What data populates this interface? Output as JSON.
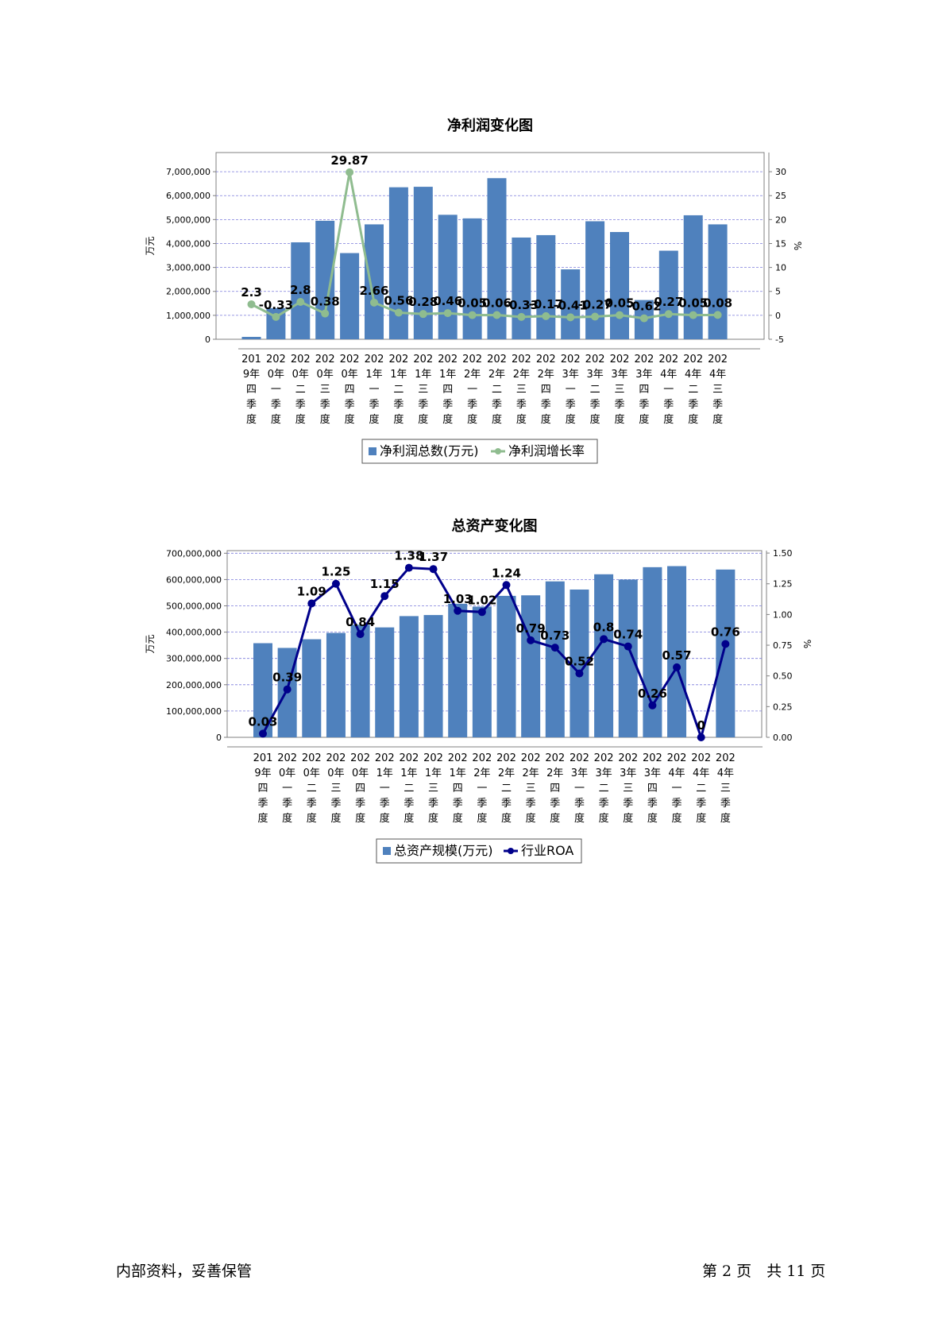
{
  "footer": {
    "left": "内部资料，妥善保管",
    "right": "第 2 页　共 11 页"
  },
  "chart_data": [
    {
      "type": "bar",
      "title": "净利润变化图",
      "ylabel": "万元",
      "y2label": "%",
      "ylim": [
        0,
        7800000
      ],
      "y2lim": [
        -5,
        34
      ],
      "yticks": [
        "0",
        "1,000,000",
        "2,000,000",
        "3,000,000",
        "4,000,000",
        "5,000,000",
        "6,000,000",
        "7,000,000"
      ],
      "y2ticks": [
        "-5",
        "0",
        "5",
        "10",
        "15",
        "20",
        "25",
        "30"
      ],
      "categories": [
        "2019年四季度",
        "2020年一季度",
        "2020年二季度",
        "2020年三季度",
        "2020年四季度",
        "2021年一季度",
        "2021年二季度",
        "2021年三季度",
        "2021年四季度",
        "2022年一季度",
        "2022年二季度",
        "2022年三季度",
        "2022年四季度",
        "2023年一季度",
        "2023年二季度",
        "2023年三季度",
        "2023年四季度",
        "2024年一季度",
        "2024年二季度",
        "2024年三季度"
      ],
      "series": [
        {
          "name": "净利润总数(万元)",
          "kind": "bar",
          "color": "#4f81bd",
          "values": [
            100000,
            1300000,
            4050000,
            4950000,
            3600000,
            4800000,
            6350000,
            6370000,
            5200000,
            5050000,
            6730000,
            4250000,
            4350000,
            2920000,
            4930000,
            4480000,
            1640000,
            3700000,
            5180000,
            4800000
          ]
        },
        {
          "name": "净利润增长率",
          "kind": "line",
          "color": "#8fbc8f",
          "values": [
            2.3,
            -0.33,
            2.8,
            0.38,
            29.87,
            2.66,
            0.56,
            0.28,
            0.46,
            0.05,
            0.06,
            -0.33,
            -0.17,
            -0.41,
            -0.27,
            0.05,
            -0.62,
            0.27,
            0.05,
            0.08
          ],
          "labels": [
            "2.3",
            "-0.33",
            "2.8",
            "0.38",
            "29.87",
            "2.66",
            "0.56",
            "0.28",
            "0.46",
            "0.05",
            "0.06",
            "-0.33",
            "-0.17",
            "-0.41",
            "-0.27",
            "0.05",
            "-0.62",
            "0.27",
            "0.05",
            "0.08"
          ]
        }
      ],
      "legend_position": "bottom",
      "grid": true
    },
    {
      "type": "bar",
      "title": "总资产变化图",
      "ylabel": "万元",
      "y2label": "%",
      "ylim": [
        0,
        710000000
      ],
      "y2lim": [
        0,
        1.52
      ],
      "yticks": [
        "0",
        "100,000,000",
        "200,000,000",
        "300,000,000",
        "400,000,000",
        "500,000,000",
        "600,000,000",
        "700,000,000"
      ],
      "y2ticks": [
        "0.00",
        "0.25",
        "0.50",
        "0.75",
        "1.00",
        "1.25",
        "1.50"
      ],
      "categories": [
        "2019年四季度",
        "2020年一季度",
        "2020年二季度",
        "2020年三季度",
        "2020年四季度",
        "2021年一季度",
        "2021年二季度",
        "2021年三季度",
        "2021年四季度",
        "2022年一季度",
        "2022年二季度",
        "2022年三季度",
        "2022年四季度",
        "2023年一季度",
        "2023年二季度",
        "2023年三季度",
        "2023年四季度",
        "2024年一季度",
        "2024年二季度",
        "2024年三季度"
      ],
      "series": [
        {
          "name": "总资产规模(万元)",
          "kind": "bar",
          "color": "#4f81bd",
          "values": [
            358000000,
            340000000,
            373000000,
            397000000,
            428000000,
            418000000,
            461000000,
            465000000,
            508000000,
            497000000,
            538000000,
            540000000,
            593000000,
            562000000,
            620000000,
            600000000,
            647000000,
            651000000,
            null,
            638000000
          ]
        },
        {
          "name": "行业ROA",
          "kind": "line",
          "color": "#00008b",
          "values": [
            0.03,
            0.39,
            1.09,
            1.25,
            0.84,
            1.15,
            1.38,
            1.37,
            1.03,
            1.02,
            1.24,
            0.79,
            0.73,
            0.52,
            0.8,
            0.74,
            0.26,
            0.57,
            0,
            0.76
          ],
          "labels": [
            "0.03",
            "0.39",
            "1.09",
            "1.25",
            "0.84",
            "1.15",
            "1.38",
            "1.37",
            "1.03",
            "1.02",
            "1.24",
            "0.79",
            "0.73",
            "0.52",
            "0.8",
            "0.74",
            "0.26",
            "0.57",
            "0",
            "0.76"
          ]
        }
      ],
      "legend_position": "bottom",
      "grid": true
    }
  ]
}
